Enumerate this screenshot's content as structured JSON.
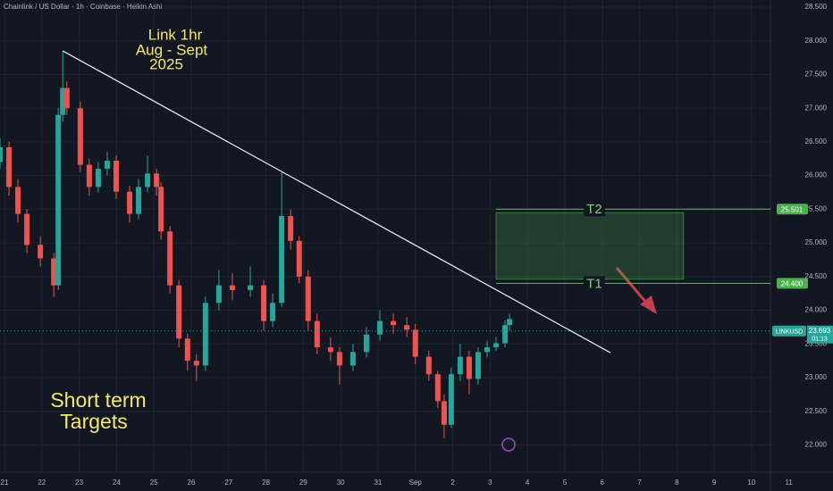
{
  "chart_data": {
    "type": "candlestick",
    "title": "Chainlink / US Dollar · 1h · Coinbase · Heikin Ashi",
    "annotations": [
      [
        "Link 1hr",
        "Aug - Sept",
        "2025"
      ],
      [
        "Short term",
        "Targets"
      ]
    ],
    "x": [
      -0.12,
      0.12,
      0.36,
      0.6,
      0.96,
      1.32,
      1.44,
      1.56,
      1.67,
      2.03,
      2.27,
      2.51,
      2.75,
      2.99,
      3.35,
      3.59,
      3.83,
      4.07,
      4.19,
      4.43,
      4.67,
      4.9,
      5.14,
      5.38,
      5.74,
      6.1,
      6.58,
      6.94,
      7.18,
      7.42,
      7.66,
      7.89,
      8.13,
      8.37,
      8.73,
      8.97,
      9.33,
      9.69,
      10.05,
      10.41,
      10.77,
      11.0,
      11.36,
      11.6,
      11.77,
      11.96,
      12.2,
      12.44,
      12.68,
      12.92,
      13.16,
      13.4,
      13.52
    ],
    "open": [
      26.2,
      26.42,
      25.83,
      25.43,
      24.97,
      24.77,
      24.37,
      26.9,
      27.3,
      27.0,
      26.16,
      25.83,
      26.1,
      26.22,
      25.76,
      25.43,
      25.83,
      26.03,
      25.83,
      25.17,
      24.37,
      23.58,
      23.25,
      23.18,
      24.11,
      24.37,
      24.3,
      24.37,
      23.84,
      24.11,
      25.4,
      25.03,
      24.5,
      23.84,
      23.45,
      23.38,
      23.18,
      23.38,
      23.64,
      23.84,
      23.78,
      23.71,
      23.31,
      23.05,
      22.65,
      22.3,
      23.05,
      23.31,
      22.98,
      23.38,
      23.45,
      23.51,
      23.78
    ],
    "high": [
      26.55,
      26.5,
      25.95,
      25.5,
      25.1,
      24.85,
      27.0,
      27.85,
      27.4,
      27.1,
      26.25,
      26.2,
      26.35,
      26.3,
      25.85,
      25.95,
      26.3,
      26.1,
      25.9,
      25.25,
      24.45,
      23.65,
      23.35,
      24.2,
      24.6,
      24.55,
      24.65,
      24.45,
      24.25,
      26.05,
      25.5,
      25.1,
      24.6,
      23.95,
      23.6,
      23.45,
      23.5,
      23.75,
      24.0,
      23.95,
      23.9,
      23.8,
      23.4,
      23.1,
      22.75,
      23.15,
      23.5,
      23.4,
      23.45,
      23.55,
      23.6,
      23.85,
      23.95
    ],
    "low": [
      26.1,
      25.7,
      25.3,
      24.85,
      24.65,
      24.2,
      24.3,
      26.8,
      26.9,
      26.05,
      25.7,
      25.75,
      26.0,
      25.65,
      25.3,
      25.35,
      25.75,
      25.7,
      25.05,
      24.25,
      23.45,
      23.1,
      22.95,
      23.1,
      24.0,
      24.15,
      24.2,
      23.7,
      23.75,
      24.05,
      24.9,
      24.4,
      23.7,
      23.35,
      23.25,
      22.9,
      23.1,
      23.3,
      23.55,
      23.65,
      23.6,
      23.2,
      22.95,
      22.55,
      22.1,
      22.25,
      22.95,
      22.75,
      22.9,
      23.3,
      23.4,
      23.45,
      23.7
    ],
    "close": [
      26.42,
      25.83,
      25.43,
      24.97,
      24.77,
      24.37,
      26.9,
      27.3,
      27.0,
      26.16,
      25.83,
      26.1,
      26.22,
      25.76,
      25.43,
      25.83,
      26.03,
      25.83,
      25.17,
      24.37,
      23.58,
      23.25,
      23.18,
      24.11,
      24.37,
      24.3,
      24.37,
      23.84,
      24.11,
      25.4,
      25.03,
      24.5,
      23.84,
      23.45,
      23.38,
      23.18,
      23.38,
      23.64,
      23.84,
      23.78,
      23.71,
      23.31,
      23.05,
      22.65,
      22.3,
      23.05,
      23.31,
      22.98,
      23.38,
      23.45,
      23.51,
      23.78,
      23.87
    ],
    "up_color": "#26a69a",
    "down_color": "#ef5350",
    "xlim": [
      -0.12,
      22.18
    ],
    "ylim": [
      21.595,
      28.606
    ],
    "xticks": [
      {
        "value": 0,
        "label": "21"
      },
      {
        "value": 1,
        "label": "22"
      },
      {
        "value": 2,
        "label": "23"
      },
      {
        "value": 3,
        "label": "24"
      },
      {
        "value": 4,
        "label": "25"
      },
      {
        "value": 5,
        "label": "26"
      },
      {
        "value": 6,
        "label": "27"
      },
      {
        "value": 7,
        "label": "28"
      },
      {
        "value": 8,
        "label": "29"
      },
      {
        "value": 9,
        "label": "30"
      },
      {
        "value": 10,
        "label": "31"
      },
      {
        "value": 11,
        "label": "Sep"
      },
      {
        "value": 12,
        "label": "2"
      },
      {
        "value": 13,
        "label": "3"
      },
      {
        "value": 14,
        "label": "4"
      },
      {
        "value": 15,
        "label": "5"
      },
      {
        "value": 16,
        "label": "6"
      },
      {
        "value": 17,
        "label": "7"
      },
      {
        "value": 18,
        "label": "8"
      },
      {
        "value": 19,
        "label": "9"
      },
      {
        "value": 20,
        "label": "10"
      },
      {
        "value": 21,
        "label": "11"
      }
    ],
    "yticks": [
      {
        "value": 28.5,
        "label": "28.500"
      },
      {
        "value": 28,
        "label": "28.000"
      },
      {
        "value": 27.5,
        "label": "27.500"
      },
      {
        "value": 27,
        "label": "27.000"
      },
      {
        "value": 26.5,
        "label": "26.500"
      },
      {
        "value": 26,
        "label": "26.000"
      },
      {
        "value": 25.5,
        "label": "25.500"
      },
      {
        "value": 25,
        "label": "25.000"
      },
      {
        "value": 24.5,
        "label": "24.500"
      },
      {
        "value": 24,
        "label": "24.000"
      },
      {
        "value": 23.5,
        "label": "23.500"
      },
      {
        "value": 23,
        "label": "23.000"
      },
      {
        "value": 22.5,
        "label": "22.500"
      },
      {
        "value": 22,
        "label": "22.000"
      }
    ],
    "grid": true,
    "trendline": {
      "x": [
        1.56,
        16.22
      ],
      "y": [
        27.85,
        23.37
      ],
      "color": "#e8e8e8"
    },
    "targets": [
      {
        "label": "T2",
        "value": 25.501,
        "price_label": "25.501"
      },
      {
        "label": "T1",
        "value": 24.4,
        "price_label": "24.400"
      }
    ],
    "target_zone": {
      "x": [
        13.16,
        18.18
      ],
      "y": [
        24.46,
        25.45
      ]
    },
    "target_x": 13.16,
    "last_price": {
      "symbol": "LINKUSD",
      "value": 23.693,
      "countdown": "01:13"
    }
  }
}
